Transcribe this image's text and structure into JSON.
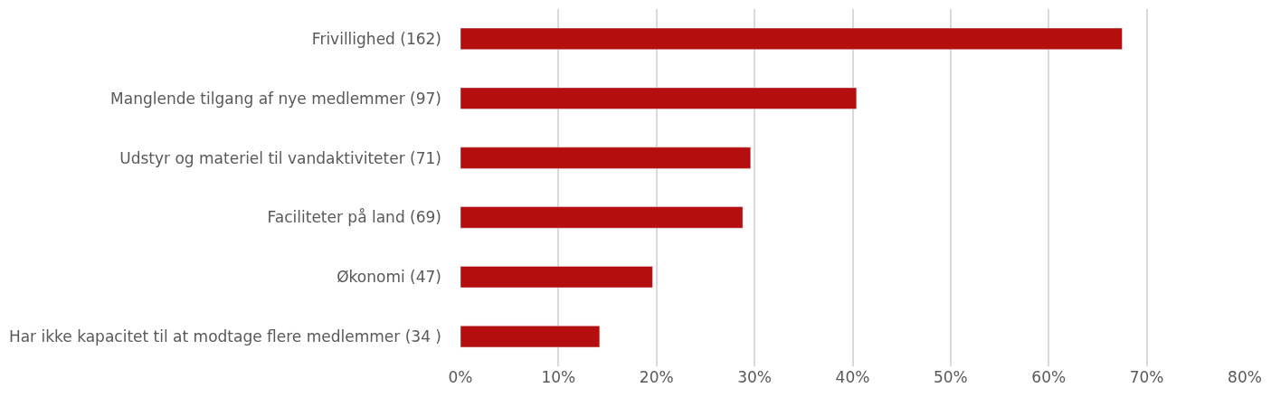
{
  "chart_data": {
    "type": "bar",
    "orientation": "horizontal",
    "categories": [
      "Frivillighed (162)",
      "Manglende tilgang af nye medlemmer (97)",
      "Udstyr og materiel til vandaktiviteter (71)",
      "Faciliteter på land (69)",
      "Økonomi (47)",
      "Har ikke kapacitet til at modtage flere medlemmer (34 )"
    ],
    "values": [
      67.5,
      40.4,
      29.6,
      28.8,
      19.6,
      14.2
    ],
    "color": "#b50e0e",
    "xlim": [
      0,
      80
    ],
    "xticks": [
      {
        "value": 0,
        "label": "0%"
      },
      {
        "value": 10,
        "label": "10%"
      },
      {
        "value": 20,
        "label": "20%"
      },
      {
        "value": 30,
        "label": "30%"
      },
      {
        "value": 40,
        "label": "40%"
      },
      {
        "value": 50,
        "label": "50%"
      },
      {
        "value": 60,
        "label": "60%"
      },
      {
        "value": 70,
        "label": "70%"
      },
      {
        "value": 80,
        "label": "80%"
      }
    ],
    "grid": "x"
  }
}
